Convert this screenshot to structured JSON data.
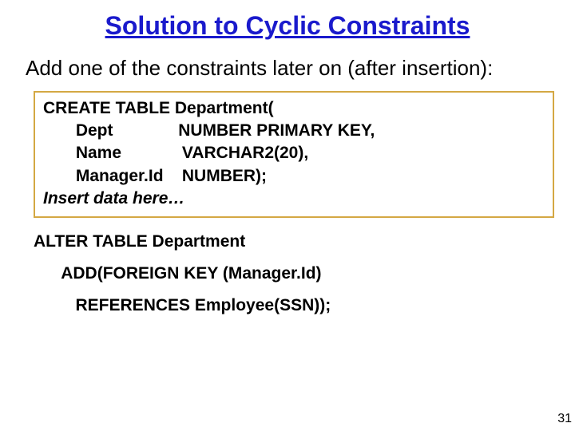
{
  "title": "Solution to Cyclic Constraints",
  "subtitle": "Add one of the constraints later on (after insertion):",
  "code": {
    "l1": "CREATE TABLE Department(",
    "l2": "       Dept              NUMBER PRIMARY KEY,",
    "l3": "       Name             VARCHAR2(20),",
    "l4": "       Manager.Id    NUMBER);",
    "l5": "Insert data here…"
  },
  "alter": {
    "l1": "ALTER TABLE Department",
    "l2": "      ADD(FOREIGN KEY (Manager.Id)",
    "l3": "         REFERENCES Employee(SSN));"
  },
  "pageNumber": "31",
  "colors": {
    "titleColor": "#1a1acc",
    "boxBorder": "#d4a843",
    "background": "#ffffff",
    "text": "#000000"
  },
  "fonts": {
    "titleFamily": "Comic Sans MS",
    "bodyFamily": "Comic Sans MS",
    "codeFamily": "Verdana",
    "titleSize": 32,
    "subtitleSize": 26,
    "codeSize": 21
  }
}
